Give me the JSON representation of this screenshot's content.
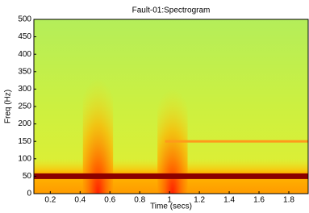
{
  "chart_data": {
    "type": "spectrogram",
    "title": "Fault-01:Spectrogram",
    "xlabel": "Time (secs)",
    "ylabel": "Freq (Hz)",
    "xlim": [
      0.09,
      1.93
    ],
    "ylim": [
      0,
      500
    ],
    "xticks": [
      0.2,
      0.4,
      0.6,
      0.8,
      1,
      1.2,
      1.4,
      1.6,
      1.8
    ],
    "yticks": [
      0,
      50,
      100,
      150,
      200,
      250,
      300,
      350,
      400,
      450,
      500
    ],
    "lines": [
      {
        "freq": 50,
        "start": 0.09,
        "end": 1.93,
        "color": "#8b0000"
      },
      {
        "freq": 150,
        "start": 0.97,
        "end": 1.93,
        "color": "#ff9a1a"
      }
    ],
    "bursts": [
      {
        "time": 0.52,
        "top": 330,
        "color": "#ff5a00"
      },
      {
        "time": 1.02,
        "top": 300,
        "color": "#ff5a00"
      }
    ]
  }
}
